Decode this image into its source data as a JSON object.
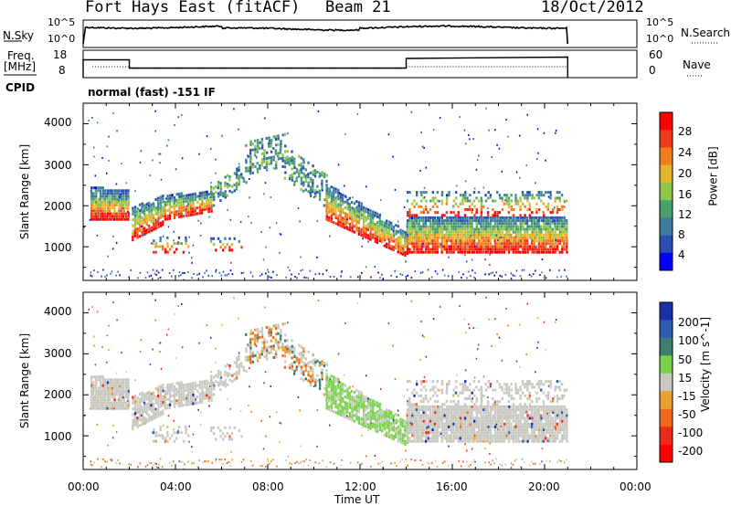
{
  "header": {
    "station": "Fort Hays East (fitACF)",
    "beam": "Beam 21",
    "date": "18/Oct/2012"
  },
  "aux_panels": {
    "nsky_label": "N.Sky",
    "nsearch_label": "N.Search",
    "nsky_ticks": [
      "10^5",
      "10^0"
    ],
    "freq_label_1": "Freq.",
    "freq_label_2": "[MHz]",
    "freq_ticks": [
      "18",
      "8"
    ],
    "nave_label": "Nave",
    "nave_ticks": [
      "60",
      "0"
    ],
    "cpid_label": "CPID",
    "cpid_text": "normal (fast) -151 IF"
  },
  "chart_data": [
    {
      "type": "heatmap",
      "name": "power",
      "ylabel": "Slant Range [km]",
      "xlabel": "Time UT",
      "xlim": [
        0,
        24
      ],
      "ylim": [
        180,
        4500
      ],
      "colorbar_label": "Power [dB]",
      "colorbar_ticks": [
        28,
        24,
        20,
        16,
        12,
        8,
        4
      ],
      "colors": [
        "#0000ff",
        "#2a4fb0",
        "#3d7a9e",
        "#4a9f6e",
        "#8cc64b",
        "#e6b52e",
        "#f07d1e",
        "#ee3a1a",
        "#ff0000"
      ]
    },
    {
      "type": "heatmap",
      "name": "velocity",
      "ylabel": "Slant Range [km]",
      "xlabel": "Time UT",
      "xlim": [
        0,
        24
      ],
      "ylim": [
        180,
        4500
      ],
      "colorbar_label": "Velocity [m s^-1]",
      "colorbar_ticks": [
        200,
        100,
        50,
        15,
        -15,
        -50,
        -100,
        -200
      ],
      "colors": [
        "#1a2fa8",
        "#2d5fb0",
        "#3d7e6e",
        "#7ad24a",
        "#c8c8c0",
        "#e8a030",
        "#f06a1e",
        "#ee2a1a",
        "#ff0000"
      ]
    },
    {
      "type": "line",
      "name": "frequency",
      "ylabel": "Freq. [MHz]",
      "x": [
        0,
        2,
        2,
        14,
        14,
        21
      ],
      "y": [
        14.5,
        14.5,
        11.5,
        11.5,
        15,
        15.5
      ]
    }
  ],
  "axes": {
    "y_ticks": [
      "4000",
      "3000",
      "2000",
      "1000"
    ],
    "x_ticks": [
      "00:00",
      "04:00",
      "08:00",
      "12:00",
      "16:00",
      "20:00",
      "00:00"
    ],
    "xlabel": "Time UT"
  }
}
